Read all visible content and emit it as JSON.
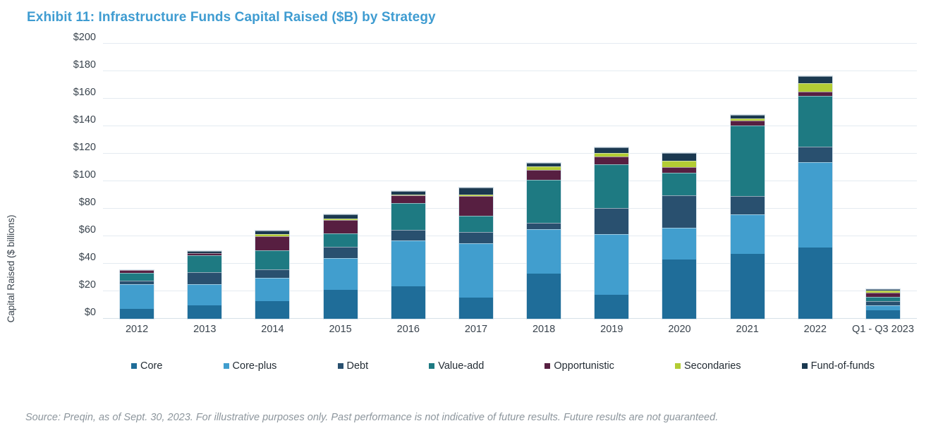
{
  "page": {
    "title_color": "#3f9cd1",
    "axis_text_color": "#39434d",
    "grid_color": "#e4ebf1",
    "footer_color": "#8d969d"
  },
  "footer": {
    "source": "Source: Preqin, as of Sept. 30, 2023. For illustrative purposes only. Past performance is not indicative of future results. Future results are not guaranteed."
  },
  "chart_data": {
    "type": "bar",
    "subtype": "stacked-vertical",
    "title": "Exhibit 11: Infrastructure Funds Capital Raised ($B) by Strategy",
    "xlabel": "",
    "ylabel": "Capital Raised ($ billions)",
    "ylim": [
      0,
      200
    ],
    "ytick_step": 20,
    "ytick_prefix": "$",
    "grid": true,
    "legend_position": "bottom",
    "categories": [
      "2012",
      "2013",
      "2014",
      "2015",
      "2016",
      "2017",
      "2018",
      "2019",
      "2020",
      "2021",
      "2022",
      "Q1 - Q3 2023"
    ],
    "series": [
      {
        "name": "Core",
        "color": "#1f6d99",
        "values": [
          7,
          10,
          13,
          21,
          23.5,
          15.5,
          33,
          17.5,
          43,
          47,
          52,
          6
        ]
      },
      {
        "name": "Core-plus",
        "color": "#419ece",
        "values": [
          18,
          15,
          17,
          23,
          33.5,
          39.5,
          32,
          44,
          23,
          29,
          62,
          4
        ]
      },
      {
        "name": "Debt",
        "color": "#29506f",
        "values": [
          2.5,
          9,
          6,
          8.5,
          7.5,
          8,
          5,
          19,
          24,
          13.5,
          11,
          3
        ]
      },
      {
        "name": "Value-add",
        "color": "#1e7a82",
        "values": [
          6,
          12,
          14,
          9.5,
          19.5,
          12,
          31,
          32,
          16,
          51,
          37,
          3
        ]
      },
      {
        "name": "Opportunistic",
        "color": "#571f41",
        "values": [
          2,
          1.5,
          10,
          10,
          6,
          14,
          7,
          5.5,
          4.5,
          3.5,
          3,
          3
        ]
      },
      {
        "name": "Secondaries",
        "color": "#b3cc34",
        "values": [
          0,
          0,
          1.5,
          1,
          0.5,
          1.5,
          3,
          2.5,
          4.5,
          1.5,
          6.5,
          1.5
        ]
      },
      {
        "name": "Fund-of-funds",
        "color": "#1b3950",
        "values": [
          0,
          1.5,
          2.5,
          3,
          2.5,
          5,
          2.5,
          4,
          5.5,
          2.5,
          5,
          1
        ]
      }
    ]
  }
}
